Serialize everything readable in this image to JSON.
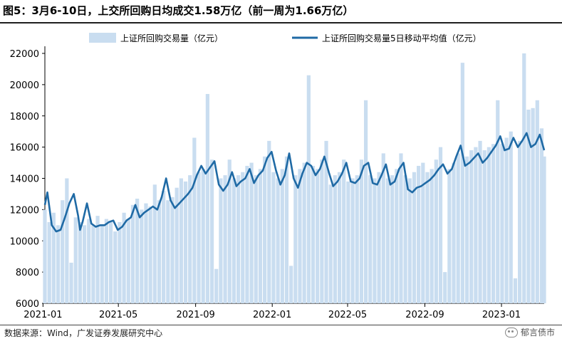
{
  "header": {
    "title": "图5：3月6-10日，上交所回购日均成交1.58万亿（前一周为1.66万亿）"
  },
  "footer": {
    "source": "数据来源：Wind，广发证券发展研究中心",
    "brand": "郁言债市"
  },
  "colors": {
    "bar": "#c9ddf0",
    "line": "#1f6aa5",
    "axis": "#000000"
  },
  "chart_data": {
    "type": "bar",
    "legend_position": "top",
    "ylim": [
      6000,
      22000
    ],
    "yticks": [
      "6000",
      "8000",
      "10000",
      "12000",
      "14000",
      "16000",
      "18000",
      "20000",
      "22000"
    ],
    "x_tick_labels": [
      "2021-01",
      "2021-05",
      "2021-09",
      "2022-01",
      "2022-05",
      "2022-09",
      "2023-01"
    ],
    "x_range": [
      "2021-01-04",
      "2023-03-10"
    ],
    "series": [
      {
        "name": "上证所回购交易量（亿元）",
        "kind": "bar",
        "points": [
          [
            "2021-01-04",
            12000
          ],
          [
            "2021-01-11",
            11200
          ],
          [
            "2021-01-18",
            11800
          ],
          [
            "2021-01-25",
            11000
          ],
          [
            "2021-02-01",
            12600
          ],
          [
            "2021-02-08",
            14000
          ],
          [
            "2021-02-15",
            8600
          ],
          [
            "2021-02-22",
            11500
          ],
          [
            "2021-03-01",
            11200
          ],
          [
            "2021-03-08",
            11000
          ],
          [
            "2021-03-15",
            11400
          ],
          [
            "2021-03-22",
            11000
          ],
          [
            "2021-03-29",
            11600
          ],
          [
            "2021-04-05",
            11000
          ],
          [
            "2021-04-12",
            11400
          ],
          [
            "2021-04-19",
            11200
          ],
          [
            "2021-04-26",
            10600
          ],
          [
            "2021-05-03",
            11200
          ],
          [
            "2021-05-10",
            11800
          ],
          [
            "2021-05-17",
            11400
          ],
          [
            "2021-05-24",
            12300
          ],
          [
            "2021-05-31",
            12700
          ],
          [
            "2021-06-07",
            12000
          ],
          [
            "2021-06-14",
            12400
          ],
          [
            "2021-06-21",
            12200
          ],
          [
            "2021-06-28",
            13600
          ],
          [
            "2021-07-05",
            12600
          ],
          [
            "2021-07-12",
            13200
          ],
          [
            "2021-07-19",
            12600
          ],
          [
            "2021-07-26",
            12800
          ],
          [
            "2021-08-02",
            13400
          ],
          [
            "2021-08-09",
            14000
          ],
          [
            "2021-08-16",
            13800
          ],
          [
            "2021-08-23",
            14200
          ],
          [
            "2021-08-30",
            16600
          ],
          [
            "2021-09-06",
            14400
          ],
          [
            "2021-09-13",
            14600
          ],
          [
            "2021-09-20",
            19400
          ],
          [
            "2021-09-27",
            15200
          ],
          [
            "2021-10-04",
            8200
          ],
          [
            "2021-10-11",
            14000
          ],
          [
            "2021-10-18",
            14200
          ],
          [
            "2021-10-25",
            15200
          ],
          [
            "2021-11-01",
            14000
          ],
          [
            "2021-11-08",
            14200
          ],
          [
            "2021-11-15",
            14400
          ],
          [
            "2021-11-22",
            14800
          ],
          [
            "2021-11-29",
            15000
          ],
          [
            "2021-12-06",
            14200
          ],
          [
            "2021-12-13",
            14600
          ],
          [
            "2021-12-20",
            15400
          ],
          [
            "2021-12-27",
            16400
          ],
          [
            "2022-01-03",
            14400
          ],
          [
            "2022-01-10",
            14000
          ],
          [
            "2022-01-17",
            14600
          ],
          [
            "2022-01-24",
            15400
          ],
          [
            "2022-01-31",
            8400
          ],
          [
            "2022-02-07",
            14200
          ],
          [
            "2022-02-14",
            14600
          ],
          [
            "2022-02-21",
            15000
          ],
          [
            "2022-02-28",
            20600
          ],
          [
            "2022-03-07",
            14800
          ],
          [
            "2022-03-14",
            14600
          ],
          [
            "2022-03-21",
            15200
          ],
          [
            "2022-03-28",
            16400
          ],
          [
            "2022-04-04",
            13600
          ],
          [
            "2022-04-11",
            14200
          ],
          [
            "2022-04-18",
            14400
          ],
          [
            "2022-04-25",
            15200
          ],
          [
            "2022-05-02",
            13800
          ],
          [
            "2022-05-09",
            14000
          ],
          [
            "2022-05-16",
            14200
          ],
          [
            "2022-05-23",
            15200
          ],
          [
            "2022-05-30",
            19000
          ],
          [
            "2022-06-06",
            14200
          ],
          [
            "2022-06-13",
            14000
          ],
          [
            "2022-06-20",
            14400
          ],
          [
            "2022-06-27",
            15600
          ],
          [
            "2022-07-04",
            14000
          ],
          [
            "2022-07-11",
            14200
          ],
          [
            "2022-07-18",
            14600
          ],
          [
            "2022-07-25",
            15600
          ],
          [
            "2022-08-01",
            14200
          ],
          [
            "2022-08-08",
            14000
          ],
          [
            "2022-08-15",
            14400
          ],
          [
            "2022-08-22",
            14800
          ],
          [
            "2022-08-29",
            15000
          ],
          [
            "2022-09-05",
            14400
          ],
          [
            "2022-09-12",
            14600
          ],
          [
            "2022-09-19",
            15200
          ],
          [
            "2022-09-26",
            16000
          ],
          [
            "2022-10-03",
            8000
          ],
          [
            "2022-10-10",
            14600
          ],
          [
            "2022-10-17",
            15000
          ],
          [
            "2022-10-24",
            15600
          ],
          [
            "2022-10-31",
            21400
          ],
          [
            "2022-11-07",
            15400
          ],
          [
            "2022-11-14",
            15800
          ],
          [
            "2022-11-21",
            16000
          ],
          [
            "2022-11-28",
            16400
          ],
          [
            "2022-12-05",
            15800
          ],
          [
            "2022-12-12",
            16000
          ],
          [
            "2022-12-19",
            16200
          ],
          [
            "2022-12-26",
            19000
          ],
          [
            "2023-01-02",
            16200
          ],
          [
            "2023-01-09",
            16600
          ],
          [
            "2023-01-16",
            17000
          ],
          [
            "2023-01-23",
            7600
          ],
          [
            "2023-01-30",
            16400
          ],
          [
            "2023-02-06",
            22000
          ],
          [
            "2023-02-13",
            18400
          ],
          [
            "2023-02-20",
            18500
          ],
          [
            "2023-02-27",
            19000
          ],
          [
            "2023-03-06",
            17200
          ],
          [
            "2023-03-10",
            15400
          ]
        ]
      },
      {
        "name": "上证所回购交易量5日移动平均值（亿元）",
        "kind": "line",
        "points": [
          [
            "2021-01-04",
            12300
          ],
          [
            "2021-01-08",
            13100
          ],
          [
            "2021-01-15",
            11000
          ],
          [
            "2021-01-22",
            10600
          ],
          [
            "2021-01-29",
            10700
          ],
          [
            "2021-02-05",
            11500
          ],
          [
            "2021-02-12",
            12400
          ],
          [
            "2021-02-19",
            13000
          ],
          [
            "2021-02-26",
            11600
          ],
          [
            "2021-03-01",
            10700
          ],
          [
            "2021-03-05",
            11200
          ],
          [
            "2021-03-12",
            12400
          ],
          [
            "2021-03-19",
            11100
          ],
          [
            "2021-03-26",
            10900
          ],
          [
            "2021-04-02",
            11000
          ],
          [
            "2021-04-09",
            11000
          ],
          [
            "2021-04-16",
            11200
          ],
          [
            "2021-04-23",
            11300
          ],
          [
            "2021-04-30",
            10700
          ],
          [
            "2021-05-07",
            10900
          ],
          [
            "2021-05-14",
            11300
          ],
          [
            "2021-05-21",
            11500
          ],
          [
            "2021-05-28",
            12300
          ],
          [
            "2021-06-04",
            11500
          ],
          [
            "2021-06-11",
            11800
          ],
          [
            "2021-06-18",
            12000
          ],
          [
            "2021-06-25",
            12200
          ],
          [
            "2021-07-02",
            12000
          ],
          [
            "2021-07-09",
            12800
          ],
          [
            "2021-07-16",
            14000
          ],
          [
            "2021-07-23",
            12600
          ],
          [
            "2021-07-30",
            12100
          ],
          [
            "2021-08-06",
            12400
          ],
          [
            "2021-08-13",
            12700
          ],
          [
            "2021-08-20",
            13000
          ],
          [
            "2021-08-27",
            13400
          ],
          [
            "2021-09-03",
            14200
          ],
          [
            "2021-09-10",
            14800
          ],
          [
            "2021-09-17",
            14300
          ],
          [
            "2021-09-24",
            14700
          ],
          [
            "2021-10-01",
            15100
          ],
          [
            "2021-10-08",
            13600
          ],
          [
            "2021-10-15",
            13200
          ],
          [
            "2021-10-22",
            13600
          ],
          [
            "2021-10-29",
            14400
          ],
          [
            "2021-11-05",
            13500
          ],
          [
            "2021-11-12",
            13800
          ],
          [
            "2021-11-19",
            14000
          ],
          [
            "2021-11-26",
            14600
          ],
          [
            "2021-12-03",
            13700
          ],
          [
            "2021-12-10",
            14200
          ],
          [
            "2021-12-17",
            14500
          ],
          [
            "2021-12-24",
            15300
          ],
          [
            "2021-12-31",
            15700
          ],
          [
            "2022-01-07",
            14500
          ],
          [
            "2022-01-14",
            13600
          ],
          [
            "2022-01-21",
            14200
          ],
          [
            "2022-01-28",
            15600
          ],
          [
            "2022-02-04",
            14000
          ],
          [
            "2022-02-11",
            13400
          ],
          [
            "2022-02-18",
            14300
          ],
          [
            "2022-02-25",
            15000
          ],
          [
            "2022-03-04",
            14800
          ],
          [
            "2022-03-11",
            14200
          ],
          [
            "2022-03-18",
            14600
          ],
          [
            "2022-03-25",
            15400
          ],
          [
            "2022-04-01",
            14400
          ],
          [
            "2022-04-08",
            13500
          ],
          [
            "2022-04-15",
            13800
          ],
          [
            "2022-04-22",
            14300
          ],
          [
            "2022-04-29",
            15000
          ],
          [
            "2022-05-06",
            13800
          ],
          [
            "2022-05-13",
            13700
          ],
          [
            "2022-05-20",
            14000
          ],
          [
            "2022-05-27",
            14800
          ],
          [
            "2022-06-03",
            15000
          ],
          [
            "2022-06-10",
            13700
          ],
          [
            "2022-06-17",
            13600
          ],
          [
            "2022-06-24",
            14200
          ],
          [
            "2022-07-01",
            14900
          ],
          [
            "2022-07-08",
            13600
          ],
          [
            "2022-07-15",
            13800
          ],
          [
            "2022-07-22",
            14600
          ],
          [
            "2022-07-29",
            15000
          ],
          [
            "2022-08-05",
            13300
          ],
          [
            "2022-08-12",
            13100
          ],
          [
            "2022-08-19",
            13400
          ],
          [
            "2022-08-26",
            13500
          ],
          [
            "2022-09-02",
            13700
          ],
          [
            "2022-09-09",
            13900
          ],
          [
            "2022-09-16",
            14200
          ],
          [
            "2022-09-23",
            14600
          ],
          [
            "2022-09-30",
            14900
          ],
          [
            "2022-10-07",
            14300
          ],
          [
            "2022-10-14",
            14600
          ],
          [
            "2022-10-21",
            15400
          ],
          [
            "2022-10-28",
            16100
          ],
          [
            "2022-11-04",
            14800
          ],
          [
            "2022-11-11",
            15000
          ],
          [
            "2022-11-18",
            15300
          ],
          [
            "2022-11-25",
            15600
          ],
          [
            "2022-12-02",
            15000
          ],
          [
            "2022-12-09",
            15300
          ],
          [
            "2022-12-16",
            15700
          ],
          [
            "2022-12-23",
            16100
          ],
          [
            "2022-12-30",
            16700
          ],
          [
            "2023-01-06",
            15800
          ],
          [
            "2023-01-13",
            15900
          ],
          [
            "2023-01-20",
            16600
          ],
          [
            "2023-01-27",
            16000
          ],
          [
            "2023-02-03",
            16400
          ],
          [
            "2023-02-10",
            16900
          ],
          [
            "2023-02-17",
            16000
          ],
          [
            "2023-02-24",
            16200
          ],
          [
            "2023-03-03",
            16800
          ],
          [
            "2023-03-10",
            15800
          ]
        ]
      }
    ]
  }
}
